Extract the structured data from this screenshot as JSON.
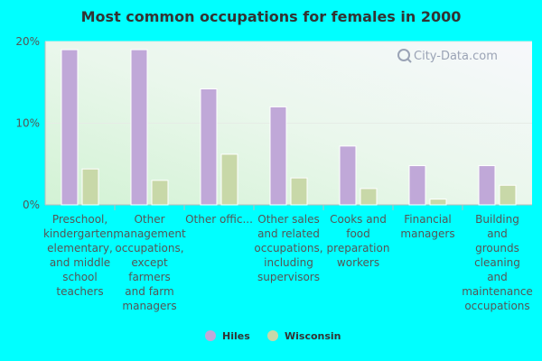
{
  "chart_data": {
    "type": "bar",
    "title": "Most common occupations for females in 2000",
    "categories": [
      [
        "Preschool,",
        "kindergarten,",
        "elementary,",
        "and middle",
        "school",
        "teachers"
      ],
      [
        "Other",
        "management",
        "occupations,",
        "except",
        "farmers",
        "and farm",
        "managers"
      ],
      [
        "Other offic..."
      ],
      [
        "Other sales",
        "and related",
        "occupations,",
        "including",
        "supervisors"
      ],
      [
        "Cooks and",
        "food",
        "preparation",
        "workers"
      ],
      [
        "Financial",
        "managers"
      ],
      [
        "Building",
        "and",
        "grounds",
        "cleaning",
        "and",
        "maintenance",
        "occupations"
      ]
    ],
    "series": [
      {
        "name": "Hiles",
        "color": "#c0a8d8",
        "values": [
          19.0,
          19.0,
          14.2,
          12.0,
          7.2,
          4.8,
          4.8
        ]
      },
      {
        "name": "Wisconsin",
        "color": "#c8d8a8",
        "values": [
          4.4,
          3.0,
          6.2,
          3.3,
          2.0,
          0.7,
          2.4
        ]
      }
    ],
    "yticks": [
      {
        "value": 0,
        "label": "0%"
      },
      {
        "value": 10,
        "label": "10%"
      },
      {
        "value": 20,
        "label": "20%"
      }
    ],
    "ylim": [
      0,
      20
    ],
    "xlabel": "",
    "ylabel": "",
    "legend": "bottom"
  },
  "watermark": "City-Data.com"
}
